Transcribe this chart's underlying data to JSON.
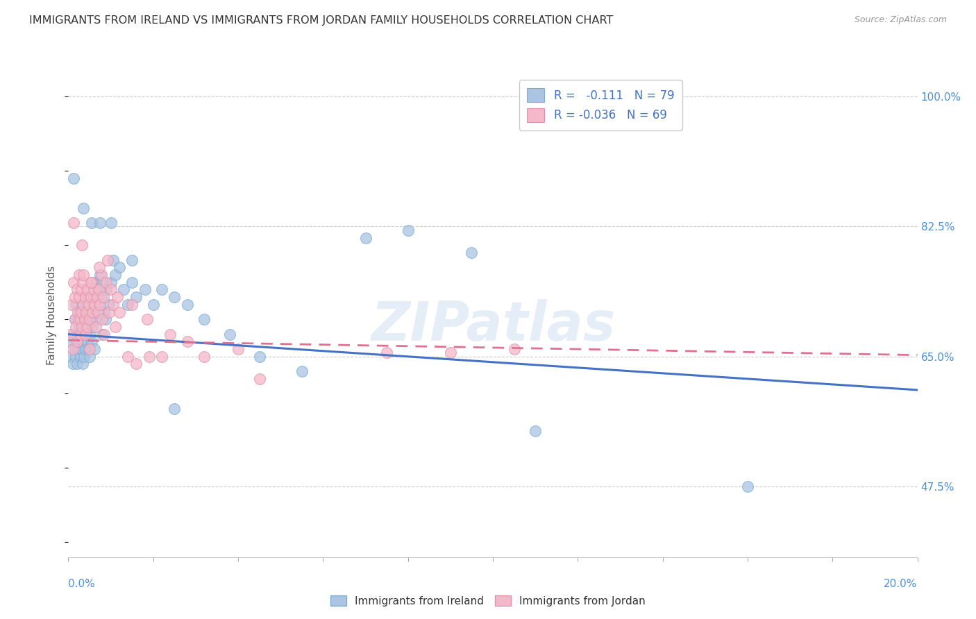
{
  "title": "IMMIGRANTS FROM IRELAND VS IMMIGRANTS FROM JORDAN FAMILY HOUSEHOLDS CORRELATION CHART",
  "source": "Source: ZipAtlas.com",
  "ylabel": "Family Households",
  "xlim": [
    0.0,
    20.0
  ],
  "ylim": [
    38.0,
    103.0
  ],
  "yticks": [
    47.5,
    65.0,
    82.5,
    100.0
  ],
  "xticks": [
    0.0,
    2.0,
    4.0,
    6.0,
    8.0,
    10.0,
    12.0,
    14.0,
    16.0,
    18.0,
    20.0
  ],
  "ireland_color": "#aac4e2",
  "ireland_edge": "#7aaed4",
  "jordan_color": "#f5b8ca",
  "jordan_edge": "#e090a8",
  "ireland_line_color": "#4472c4",
  "jordan_line_color": "#e07090",
  "ireland_R": -0.111,
  "ireland_N": 79,
  "jordan_R": -0.036,
  "jordan_N": 69,
  "legend_text_color": "#4472c4",
  "watermark": "ZIPatlas",
  "ireland_line_x0": 0.0,
  "ireland_line_y0": 68.0,
  "ireland_line_x1": 20.0,
  "ireland_line_y1": 60.5,
  "jordan_line_x0": 0.0,
  "jordan_line_y0": 67.2,
  "jordan_line_x1": 20.0,
  "jordan_line_y1": 65.2,
  "ireland_x": [
    0.05,
    0.08,
    0.1,
    0.12,
    0.15,
    0.15,
    0.17,
    0.18,
    0.2,
    0.2,
    0.22,
    0.23,
    0.25,
    0.25,
    0.27,
    0.28,
    0.3,
    0.3,
    0.32,
    0.33,
    0.35,
    0.35,
    0.37,
    0.38,
    0.4,
    0.4,
    0.42,
    0.43,
    0.45,
    0.47,
    0.48,
    0.5,
    0.5,
    0.52,
    0.55,
    0.57,
    0.6,
    0.62,
    0.65,
    0.67,
    0.7,
    0.72,
    0.75,
    0.78,
    0.8,
    0.83,
    0.85,
    0.88,
    0.9,
    0.95,
    1.0,
    1.05,
    1.1,
    1.2,
    1.3,
    1.4,
    1.5,
    1.6,
    1.8,
    2.0,
    2.2,
    2.5,
    2.8,
    3.2,
    3.8,
    4.5,
    5.5,
    7.0,
    8.0,
    9.5,
    11.0,
    16.0,
    0.13,
    0.35,
    0.55,
    0.75,
    1.0,
    1.5,
    2.5
  ],
  "ireland_y": [
    65.0,
    67.0,
    64.0,
    68.0,
    66.0,
    70.0,
    65.0,
    72.0,
    64.0,
    68.0,
    66.0,
    70.0,
    67.0,
    69.0,
    71.0,
    65.0,
    66.0,
    68.0,
    70.0,
    64.0,
    67.0,
    71.0,
    65.0,
    73.0,
    66.0,
    69.0,
    68.0,
    72.0,
    67.0,
    66.0,
    70.0,
    65.0,
    68.0,
    71.0,
    67.0,
    69.0,
    73.0,
    66.0,
    75.0,
    70.0,
    74.0,
    72.0,
    76.0,
    73.0,
    68.0,
    75.0,
    71.0,
    70.0,
    74.0,
    72.0,
    75.0,
    78.0,
    76.0,
    77.0,
    74.0,
    72.0,
    75.0,
    73.0,
    74.0,
    72.0,
    74.0,
    73.0,
    72.0,
    70.0,
    68.0,
    65.0,
    63.0,
    81.0,
    82.0,
    79.0,
    55.0,
    47.5,
    89.0,
    85.0,
    83.0,
    83.0,
    83.0,
    78.0,
    58.0
  ],
  "jordan_x": [
    0.05,
    0.08,
    0.1,
    0.12,
    0.15,
    0.15,
    0.18,
    0.2,
    0.2,
    0.22,
    0.25,
    0.25,
    0.27,
    0.28,
    0.3,
    0.3,
    0.32,
    0.33,
    0.35,
    0.35,
    0.38,
    0.4,
    0.4,
    0.42,
    0.45,
    0.45,
    0.48,
    0.5,
    0.5,
    0.53,
    0.55,
    0.57,
    0.6,
    0.62,
    0.65,
    0.68,
    0.7,
    0.73,
    0.75,
    0.78,
    0.8,
    0.83,
    0.85,
    0.9,
    0.95,
    1.0,
    1.05,
    1.1,
    1.2,
    1.4,
    1.6,
    1.9,
    2.2,
    2.8,
    4.0,
    0.13,
    0.32,
    0.53,
    0.73,
    0.92,
    1.15,
    1.5,
    1.85,
    2.4,
    3.2,
    4.5,
    7.5,
    9.0,
    10.5
  ],
  "jordan_y": [
    68.0,
    72.0,
    66.0,
    75.0,
    70.0,
    73.0,
    69.0,
    74.0,
    67.0,
    71.0,
    76.0,
    73.0,
    70.0,
    68.0,
    74.0,
    71.0,
    69.0,
    75.0,
    72.0,
    76.0,
    70.0,
    73.0,
    68.0,
    71.0,
    74.0,
    69.0,
    72.0,
    66.0,
    70.0,
    73.0,
    75.0,
    71.0,
    74.0,
    72.0,
    69.0,
    73.0,
    71.0,
    74.0,
    72.0,
    76.0,
    70.0,
    73.0,
    68.0,
    75.0,
    71.0,
    74.0,
    72.0,
    69.0,
    71.0,
    65.0,
    64.0,
    65.0,
    65.0,
    67.0,
    66.0,
    83.0,
    80.0,
    75.0,
    77.0,
    78.0,
    73.0,
    72.0,
    70.0,
    68.0,
    65.0,
    62.0,
    65.5,
    65.5,
    66.0
  ]
}
